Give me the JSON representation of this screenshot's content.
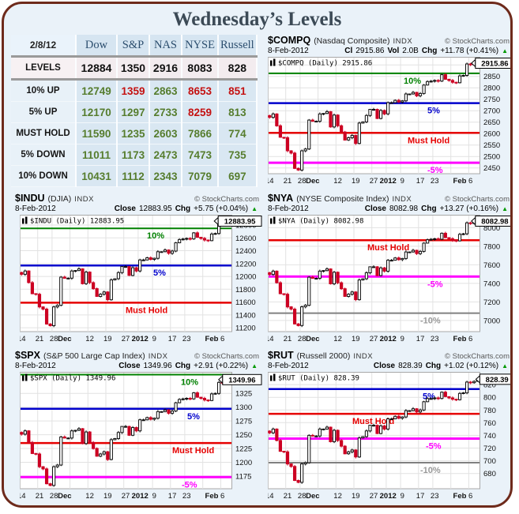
{
  "page": {
    "title": "Wednesday’s Levels"
  },
  "icons": {
    "up_triangle": "▲"
  },
  "table": {
    "date_header": "2/8/12",
    "columns": [
      "Dow",
      "S&P",
      "NAS",
      "NYSE",
      "Russell"
    ],
    "rows": [
      {
        "label": "LEVELS",
        "values": [
          "12884",
          "1350",
          "2916",
          "8083",
          "828"
        ],
        "colors": [
          "k",
          "k",
          "k",
          "k",
          "k"
        ]
      },
      {
        "label": "10% UP",
        "values": [
          "12749",
          "1359",
          "2863",
          "8653",
          "851"
        ],
        "colors": [
          "g",
          "r",
          "g",
          "r",
          "r"
        ]
      },
      {
        "label": "5% UP",
        "values": [
          "12170",
          "1297",
          "2733",
          "8259",
          "813"
        ],
        "colors": [
          "g",
          "g",
          "g",
          "r",
          "g"
        ]
      },
      {
        "label": "MUST HOLD",
        "values": [
          "11590",
          "1235",
          "2603",
          "7866",
          "774"
        ],
        "colors": [
          "g",
          "g",
          "g",
          "g",
          "g"
        ]
      },
      {
        "label": "5% DOWN",
        "values": [
          "11011",
          "1173",
          "2473",
          "7473",
          "735"
        ],
        "colors": [
          "g",
          "g",
          "g",
          "g",
          "g"
        ]
      },
      {
        "label": "10% DOWN",
        "values": [
          "10431",
          "1112",
          "2343",
          "7079",
          "697"
        ],
        "colors": [
          "g",
          "g",
          "g",
          "g",
          "g"
        ]
      }
    ]
  },
  "xaxis": {
    "labels": [
      {
        "t": "14",
        "i": 0
      },
      {
        "t": "21",
        "i": 5
      },
      {
        "t": "28",
        "i": 9
      },
      {
        "t": "Dec",
        "i": 12,
        "b": 1
      },
      {
        "t": "12",
        "i": 19
      },
      {
        "t": "19",
        "i": 24
      },
      {
        "t": "27",
        "i": 29
      },
      {
        "t": "2012",
        "i": 33,
        "b": 1
      },
      {
        "t": "9",
        "i": 37
      },
      {
        "t": "17",
        "i": 42
      },
      {
        "t": "23",
        "i": 46
      },
      {
        "t": "Feb",
        "i": 53,
        "b": 1
      },
      {
        "t": "6",
        "i": 56
      }
    ],
    "grid_weeks": [
      0,
      5,
      9,
      14,
      19,
      24,
      29,
      33,
      37,
      42,
      46,
      51,
      56
    ]
  },
  "chart_data": [
    {
      "type": "candlestick",
      "id": "compq",
      "ticker": "$COMPQ",
      "index_name": "(Nasdaq Composite)",
      "exchange": "INDX",
      "copyright": "© StockCharts.com",
      "date": "8-Feb-2012",
      "close_label": "Cl",
      "close": "2915.86",
      "vol_label": "Vol",
      "vol": "2.0B",
      "chg_label": "Chg",
      "chg": "+11.78 (+0.41%)",
      "legend": "$COMPQ (Daily) 2915.86",
      "price_tag": "2915.86",
      "ylim": [
        2425,
        2935
      ],
      "yticks": [
        2450,
        2500,
        2550,
        2600,
        2650,
        2700,
        2750,
        2800,
        2850,
        2900
      ],
      "hlines": [
        {
          "y": 2863,
          "color": "#008000",
          "label": "10%",
          "lx": 0.64,
          "w": 2
        },
        {
          "y": 2733,
          "color": "#0000cc",
          "label": "5%",
          "lx": 0.755,
          "w": 2.5
        },
        {
          "y": 2603,
          "color": "#e60000",
          "label": "Must Hold",
          "lx": 0.66,
          "w": 2.5
        },
        {
          "y": 2473,
          "color": "#ff00ff",
          "label": "-5%",
          "lx": 0.755,
          "w": 3
        }
      ],
      "closes": [
        2671,
        2686,
        2634,
        2584,
        2582,
        2525,
        2515,
        2448,
        2441,
        2525,
        2533,
        2659,
        2654,
        2654,
        2686,
        2688,
        2696,
        2629,
        2681,
        2634,
        2607,
        2572,
        2582,
        2592,
        2557,
        2646,
        2651,
        2679,
        2706,
        2706,
        2666,
        2701,
        2686,
        2735,
        2735,
        2745,
        2738,
        2743,
        2773,
        2773,
        2780,
        2765,
        2775,
        2812,
        2827,
        2829,
        2832,
        2829,
        2857,
        2837,
        2832,
        2824,
        2822,
        2852,
        2854,
        2904,
        2901,
        2909,
        2915.86
      ]
    },
    {
      "type": "candlestick",
      "id": "indu",
      "ticker": "$INDU",
      "index_name": "(DJIA)",
      "exchange": "INDX",
      "copyright": "© StockCharts.com",
      "date": "8-Feb-2012",
      "close_label": "Close",
      "close": "12883.95",
      "chg_label": "Chg",
      "chg": "+5.75 (+0.04%)",
      "legend": "$INDU (Daily) 12883.95",
      "price_tag": "12883.95",
      "ylim": [
        11140,
        12960
      ],
      "yticks": [
        11200,
        11400,
        11600,
        11800,
        12000,
        12200,
        12400,
        12600,
        12800
      ],
      "hlines": [
        {
          "y": 12749,
          "color": "#008000",
          "label": "10%",
          "lx": 0.6,
          "w": 2
        },
        {
          "y": 12170,
          "color": "#0000cc",
          "label": "5%",
          "lx": 0.63,
          "w": 2.5
        },
        {
          "y": 11590,
          "color": "#e60000",
          "label": "Must Hold",
          "lx": 0.5,
          "w": 2.5
        }
      ],
      "closes": [
        12032,
        12084,
        11903,
        11731,
        11722,
        11525,
        11490,
        11258,
        11232,
        11525,
        11550,
        11989,
        11972,
        11972,
        12084,
        12092,
        12118,
        11886,
        12067,
        11903,
        11809,
        11688,
        11722,
        11757,
        11636,
        11946,
        11963,
        12058,
        12153,
        12153,
        12015,
        12135,
        12084,
        12256,
        12256,
        12290,
        12265,
        12282,
        12385,
        12385,
        12411,
        12359,
        12394,
        12523,
        12574,
        12583,
        12591,
        12583,
        12678,
        12609,
        12591,
        12566,
        12557,
        12660,
        12669,
        12841,
        12832,
        12858,
        12883.95
      ]
    },
    {
      "type": "candlestick",
      "id": "nya",
      "ticker": "$NYA",
      "index_name": "(NYSE Composite Index)",
      "exchange": "INDX",
      "copyright": "© StockCharts.com",
      "date": "8-Feb-2012",
      "close_label": "Close",
      "close": "8082.98",
      "chg_label": "Chg",
      "chg": "+13.27 (+0.16%)",
      "legend": "$NYA (Daily) 8082.98",
      "price_tag": "8082.98",
      "ylim": [
        6880,
        8140
      ],
      "yticks": [
        7000,
        7200,
        7400,
        7600,
        7800,
        8000
      ],
      "hlines": [
        {
          "y": 7866,
          "color": "#e60000",
          "label": "Must Hold",
          "lx": 0.47,
          "w": 2.5
        },
        {
          "y": 7473,
          "color": "#ff00ff",
          "label": "-5%",
          "lx": 0.755,
          "w": 3
        },
        {
          "y": 7079,
          "color": "#808080",
          "label": "-10%",
          "lx": 0.72,
          "w": 2
        }
      ],
      "closes": [
        7496,
        7532,
        7407,
        7289,
        7283,
        7147,
        7123,
        6963,
        6945,
        7147,
        7164,
        7467,
        7455,
        7455,
        7532,
        7538,
        7556,
        7395,
        7520,
        7407,
        7342,
        7259,
        7283,
        7307,
        7224,
        7437,
        7449,
        7514,
        7579,
        7579,
        7484,
        7567,
        7532,
        7650,
        7650,
        7674,
        7656,
        7668,
        7739,
        7739,
        7757,
        7721,
        7745,
        7834,
        7870,
        7876,
        7881,
        7876,
        7941,
        7893,
        7881,
        7864,
        7858,
        7929,
        7935,
        8053,
        8047,
        8065,
        8082.98
      ]
    },
    {
      "type": "candlestick",
      "id": "spx",
      "ticker": "$SPX",
      "index_name": "(S&P 500 Large Cap Index)",
      "exchange": "INDX",
      "copyright": "© StockCharts.com",
      "date": "8-Feb-2012",
      "close_label": "Close",
      "close": "1349.96",
      "chg_label": "Chg",
      "chg": "+2.91 (+0.22%)",
      "legend": "$SPX (Daily) 1349.96",
      "price_tag": "1349.96",
      "ylim": [
        1152,
        1364
      ],
      "yticks": [
        1175,
        1200,
        1225,
        1250,
        1275,
        1300,
        1325
      ],
      "hlines": [
        {
          "y": 1359,
          "color": "#008000",
          "label": "10%",
          "lx": 0.76,
          "w": 2
        },
        {
          "y": 1297,
          "color": "#0000cc",
          "label": "5%",
          "lx": 0.79,
          "w": 2.5
        },
        {
          "y": 1235,
          "color": "#e60000",
          "label": "Must Hold",
          "lx": 0.72,
          "w": 2.5
        },
        {
          "y": 1173,
          "color": "#ff00ff",
          "label": "-5%",
          "lx": 0.765,
          "w": 3
        }
      ],
      "closes": [
        1251,
        1257,
        1236,
        1216,
        1215,
        1192,
        1188,
        1161,
        1158,
        1192,
        1195,
        1246,
        1244,
        1244,
        1257,
        1258,
        1261,
        1234,
        1255,
        1236,
        1225,
        1211,
        1215,
        1219,
        1205,
        1241,
        1243,
        1254,
        1265,
        1265,
        1249,
        1263,
        1257,
        1277,
        1277,
        1281,
        1278,
        1280,
        1292,
        1292,
        1295,
        1289,
        1293,
        1308,
        1314,
        1315,
        1316,
        1315,
        1326,
        1318,
        1316,
        1313,
        1312,
        1324,
        1325,
        1345,
        1344,
        1347,
        1349.96
      ]
    },
    {
      "type": "candlestick",
      "id": "rut",
      "ticker": "$RUT",
      "index_name": "(Russell 2000)",
      "exchange": "INDX",
      "copyright": "© StockCharts.com",
      "date": "8-Feb-2012",
      "close_label": "Close",
      "close": "828.39",
      "chg_label": "Chg",
      "chg": "+1.02 (+0.12%)",
      "legend": "$RUT (Daily) 828.39",
      "price_tag": "828.39",
      "ylim": [
        656,
        840
      ],
      "yticks": [
        680,
        700,
        720,
        740,
        760,
        780,
        800,
        820
      ],
      "hlines": [
        {
          "y": 813,
          "color": "#0000cc",
          "label": "5%",
          "lx": 0.73,
          "w": 2.5
        },
        {
          "y": 774,
          "color": "#e60000",
          "label": "Must Hold",
          "lx": 0.4,
          "w": 2.5
        },
        {
          "y": 735,
          "color": "#ff00ff",
          "label": "-5%",
          "lx": 0.745,
          "w": 3
        },
        {
          "y": 697,
          "color": "#808080",
          "label": "-10%",
          "lx": 0.72,
          "w": 2
        }
      ],
      "closes": [
        744,
        750,
        732,
        715,
        714,
        695,
        691,
        669,
        666,
        695,
        697,
        740,
        739,
        739,
        750,
        750,
        753,
        730,
        748,
        732,
        723,
        711,
        714,
        717,
        706,
        736,
        738,
        747,
        756,
        756,
        743,
        755,
        750,
        766,
        766,
        770,
        767,
        769,
        779,
        779,
        782,
        777,
        780,
        793,
        798,
        798,
        799,
        798,
        808,
        801,
        799,
        797,
        796,
        806,
        807,
        824,
        823,
        825,
        828.39
      ]
    }
  ]
}
